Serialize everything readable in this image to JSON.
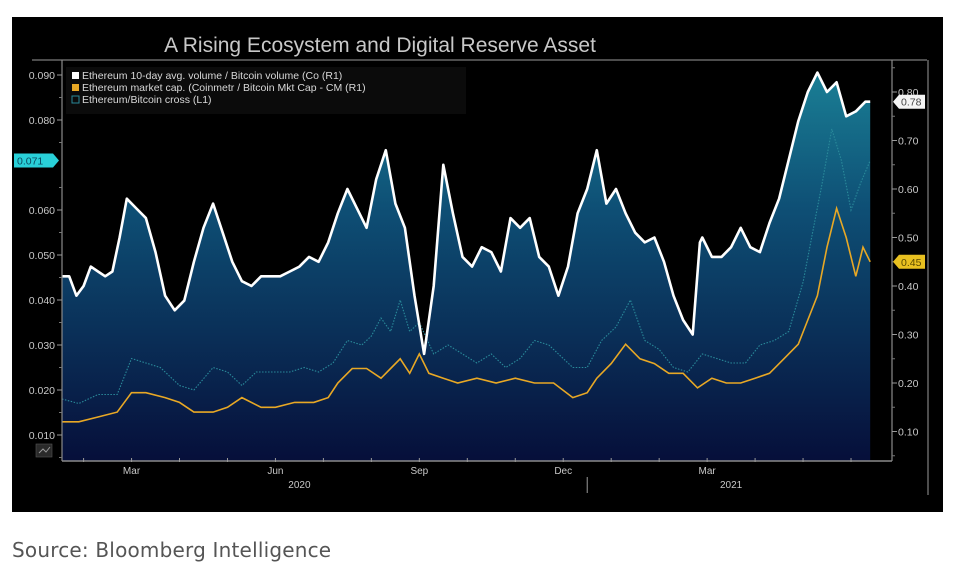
{
  "source_caption": "Source: Bloomberg Intelligence",
  "chart_data": {
    "type": "line",
    "title": "A Rising Ecosystem and Digital Reserve Asset",
    "legend": {
      "placement": "top-left",
      "entries": [
        {
          "label": "Ethereum 10-day avg. volume / Bitcoin volume (Co (R1)",
          "color": "#ffffff"
        },
        {
          "label": "Ethereum market cap. (Coinmetr / Bitcoin Mkt Cap - CM (R1)",
          "color": "#e8a825"
        },
        {
          "label": "Ethereum/Bitcoin cross (L1)",
          "color": "#2a8a9a"
        }
      ]
    },
    "left_axis": {
      "ylim": [
        0.0,
        0.092
      ],
      "ticks": [
        "0.090",
        "0.080",
        "0.060",
        "0.050",
        "0.040",
        "0.030",
        "0.020",
        "0.010"
      ],
      "tick_values": [
        0.09,
        0.08,
        0.06,
        0.05,
        0.04,
        0.03,
        0.02,
        0.01
      ],
      "last_value_label": "0.071",
      "last_value": 0.071,
      "last_value_color": "#29d0d8"
    },
    "right_axis": {
      "ylim": [
        0.0,
        0.84
      ],
      "ticks": [
        "0.80",
        "0.70",
        "0.60",
        "0.50",
        "0.40",
        "0.30",
        "0.20",
        "0.10"
      ],
      "tick_values": [
        0.8,
        0.7,
        0.6,
        0.5,
        0.4,
        0.3,
        0.2,
        0.1
      ],
      "last_value_labels": [
        {
          "text": "0.78",
          "value": 0.78,
          "color": "#ffffff"
        },
        {
          "text": "0.45",
          "value": 0.45,
          "color": "#e8c020"
        }
      ]
    },
    "x_axis": {
      "unit": "months since 2020-01",
      "xlim": [
        0.55,
        17.5
      ],
      "month_labels": [
        {
          "text": "Mar",
          "x": 2.0
        },
        {
          "text": "Jun",
          "x": 5.0
        },
        {
          "text": "Sep",
          "x": 8.0
        },
        {
          "text": "Dec",
          "x": 11.0
        },
        {
          "text": "Mar",
          "x": 14.0
        }
      ],
      "year_labels": [
        {
          "text": "2020",
          "x": 5.5
        },
        {
          "text": "2021",
          "x": 14.5
        }
      ],
      "year_divider_x": 11.5
    },
    "series": [
      {
        "name": "Ethereum 10-day avg. volume / Bitcoin volume (Co (R1)",
        "axis": "right",
        "color": "#ffffff",
        "x": [
          0.55,
          0.7,
          0.85,
          1.0,
          1.15,
          1.3,
          1.45,
          1.6,
          1.75,
          1.9,
          2.1,
          2.3,
          2.5,
          2.7,
          2.9,
          3.1,
          3.3,
          3.5,
          3.7,
          3.9,
          4.1,
          4.3,
          4.5,
          4.7,
          4.9,
          5.1,
          5.3,
          5.5,
          5.7,
          5.9,
          6.1,
          6.3,
          6.5,
          6.7,
          6.9,
          7.1,
          7.3,
          7.5,
          7.7,
          7.9,
          8.1,
          8.3,
          8.5,
          8.7,
          8.9,
          9.1,
          9.3,
          9.5,
          9.7,
          9.9,
          10.1,
          10.3,
          10.5,
          10.7,
          10.9,
          11.1,
          11.3,
          11.5,
          11.7,
          11.9,
          12.1,
          12.3,
          12.5,
          12.7,
          12.9,
          13.1,
          13.3,
          13.5,
          13.7,
          13.85,
          13.9,
          14.1,
          14.3,
          14.5,
          14.7,
          14.9,
          15.1,
          15.3,
          15.5,
          15.7,
          15.9,
          16.1,
          16.3,
          16.5,
          16.7,
          16.9,
          17.1,
          17.3,
          17.4
        ],
        "values": [
          0.42,
          0.42,
          0.38,
          0.4,
          0.44,
          0.43,
          0.42,
          0.43,
          0.5,
          0.58,
          0.56,
          0.54,
          0.47,
          0.38,
          0.35,
          0.37,
          0.45,
          0.52,
          0.57,
          0.51,
          0.45,
          0.41,
          0.4,
          0.42,
          0.42,
          0.42,
          0.43,
          0.44,
          0.46,
          0.45,
          0.49,
          0.55,
          0.6,
          0.56,
          0.52,
          0.62,
          0.68,
          0.57,
          0.52,
          0.38,
          0.26,
          0.4,
          0.65,
          0.55,
          0.46,
          0.44,
          0.48,
          0.47,
          0.43,
          0.54,
          0.52,
          0.54,
          0.46,
          0.44,
          0.38,
          0.44,
          0.55,
          0.6,
          0.68,
          0.57,
          0.6,
          0.55,
          0.51,
          0.49,
          0.5,
          0.45,
          0.38,
          0.33,
          0.3,
          0.49,
          0.5,
          0.46,
          0.46,
          0.48,
          0.52,
          0.48,
          0.47,
          0.53,
          0.58,
          0.66,
          0.74,
          0.8,
          0.84,
          0.8,
          0.82,
          0.75,
          0.76,
          0.78,
          0.78
        ]
      },
      {
        "name": "Ethereum market cap. (Coinmetr / Bitcoin Mkt Cap - CM (R1)",
        "axis": "right",
        "color": "#e8a825",
        "x": [
          0.55,
          0.9,
          1.3,
          1.7,
          2.0,
          2.3,
          2.7,
          3.0,
          3.3,
          3.7,
          4.0,
          4.3,
          4.7,
          5.0,
          5.4,
          5.8,
          6.1,
          6.3,
          6.6,
          6.9,
          7.2,
          7.4,
          7.6,
          7.8,
          8.0,
          8.2,
          8.5,
          8.8,
          9.2,
          9.6,
          10.0,
          10.4,
          10.8,
          11.2,
          11.5,
          11.7,
          12.0,
          12.3,
          12.6,
          12.9,
          13.2,
          13.5,
          13.8,
          14.1,
          14.4,
          14.7,
          15.0,
          15.3,
          15.6,
          15.9,
          16.1,
          16.3,
          16.5,
          16.7,
          16.9,
          17.1,
          17.25,
          17.4
        ],
        "values": [
          0.12,
          0.12,
          0.13,
          0.14,
          0.18,
          0.18,
          0.17,
          0.16,
          0.14,
          0.14,
          0.15,
          0.17,
          0.15,
          0.15,
          0.16,
          0.16,
          0.17,
          0.2,
          0.23,
          0.23,
          0.21,
          0.23,
          0.25,
          0.22,
          0.26,
          0.22,
          0.21,
          0.2,
          0.21,
          0.2,
          0.21,
          0.2,
          0.2,
          0.17,
          0.18,
          0.21,
          0.24,
          0.28,
          0.25,
          0.24,
          0.22,
          0.22,
          0.19,
          0.21,
          0.2,
          0.2,
          0.21,
          0.22,
          0.25,
          0.28,
          0.33,
          0.38,
          0.48,
          0.56,
          0.5,
          0.42,
          0.48,
          0.45
        ]
      },
      {
        "name": "Ethereum/Bitcoin cross (L1)",
        "axis": "left",
        "color": "#2a8a9a",
        "x": [
          0.55,
          0.9,
          1.3,
          1.7,
          2.0,
          2.3,
          2.6,
          3.0,
          3.3,
          3.7,
          4.0,
          4.3,
          4.6,
          5.0,
          5.3,
          5.6,
          5.9,
          6.2,
          6.5,
          6.8,
          7.0,
          7.2,
          7.4,
          7.6,
          7.8,
          8.0,
          8.3,
          8.6,
          8.9,
          9.2,
          9.5,
          9.8,
          10.1,
          10.4,
          10.7,
          11.0,
          11.2,
          11.5,
          11.8,
          12.1,
          12.4,
          12.7,
          13.0,
          13.3,
          13.6,
          13.9,
          14.2,
          14.5,
          14.8,
          15.1,
          15.4,
          15.7,
          16.0,
          16.2,
          16.4,
          16.6,
          16.8,
          17.0,
          17.2,
          17.4
        ],
        "values": [
          0.018,
          0.017,
          0.019,
          0.019,
          0.027,
          0.026,
          0.025,
          0.021,
          0.02,
          0.025,
          0.024,
          0.021,
          0.024,
          0.024,
          0.024,
          0.025,
          0.024,
          0.026,
          0.031,
          0.03,
          0.032,
          0.036,
          0.033,
          0.04,
          0.033,
          0.035,
          0.028,
          0.03,
          0.028,
          0.026,
          0.028,
          0.025,
          0.027,
          0.031,
          0.03,
          0.027,
          0.025,
          0.025,
          0.031,
          0.034,
          0.04,
          0.031,
          0.029,
          0.025,
          0.024,
          0.028,
          0.027,
          0.026,
          0.026,
          0.03,
          0.031,
          0.033,
          0.044,
          0.055,
          0.066,
          0.078,
          0.071,
          0.06,
          0.066,
          0.071
        ]
      }
    ]
  }
}
